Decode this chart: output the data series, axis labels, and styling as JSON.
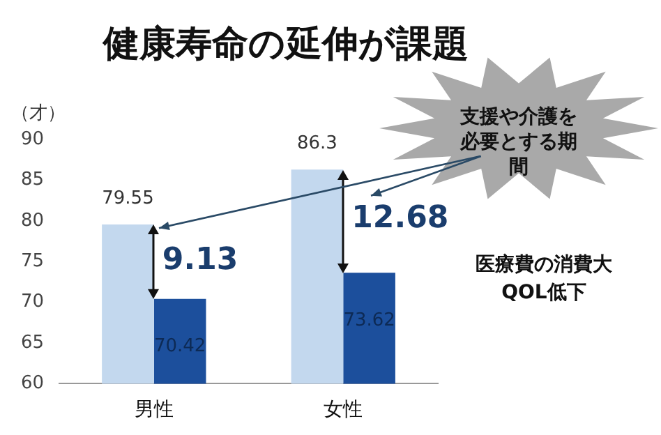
{
  "chart_data": {
    "type": "bar",
    "title": "健康寿命の延伸が課題",
    "ylabel": "（才）",
    "categories": [
      "男性",
      "女性"
    ],
    "series": [
      {
        "color": "#c3d8ee",
        "values": [
          79.55,
          86.3
        ]
      },
      {
        "color": "#1c4f9c",
        "values": [
          70.42,
          73.62
        ]
      }
    ],
    "ylim": [
      60,
      90
    ],
    "yticks": [
      60,
      65,
      70,
      75,
      80,
      85,
      90
    ],
    "grid": false,
    "legend": false,
    "data_labels": true,
    "annotations": [
      {
        "text": "9.13",
        "x": "男性",
        "y": 75
      },
      {
        "text": "12.68",
        "x": "女性",
        "y": 80
      },
      "支援や介護を必要とする期間",
      "医療費の消費大QOL低下"
    ]
  }
}
